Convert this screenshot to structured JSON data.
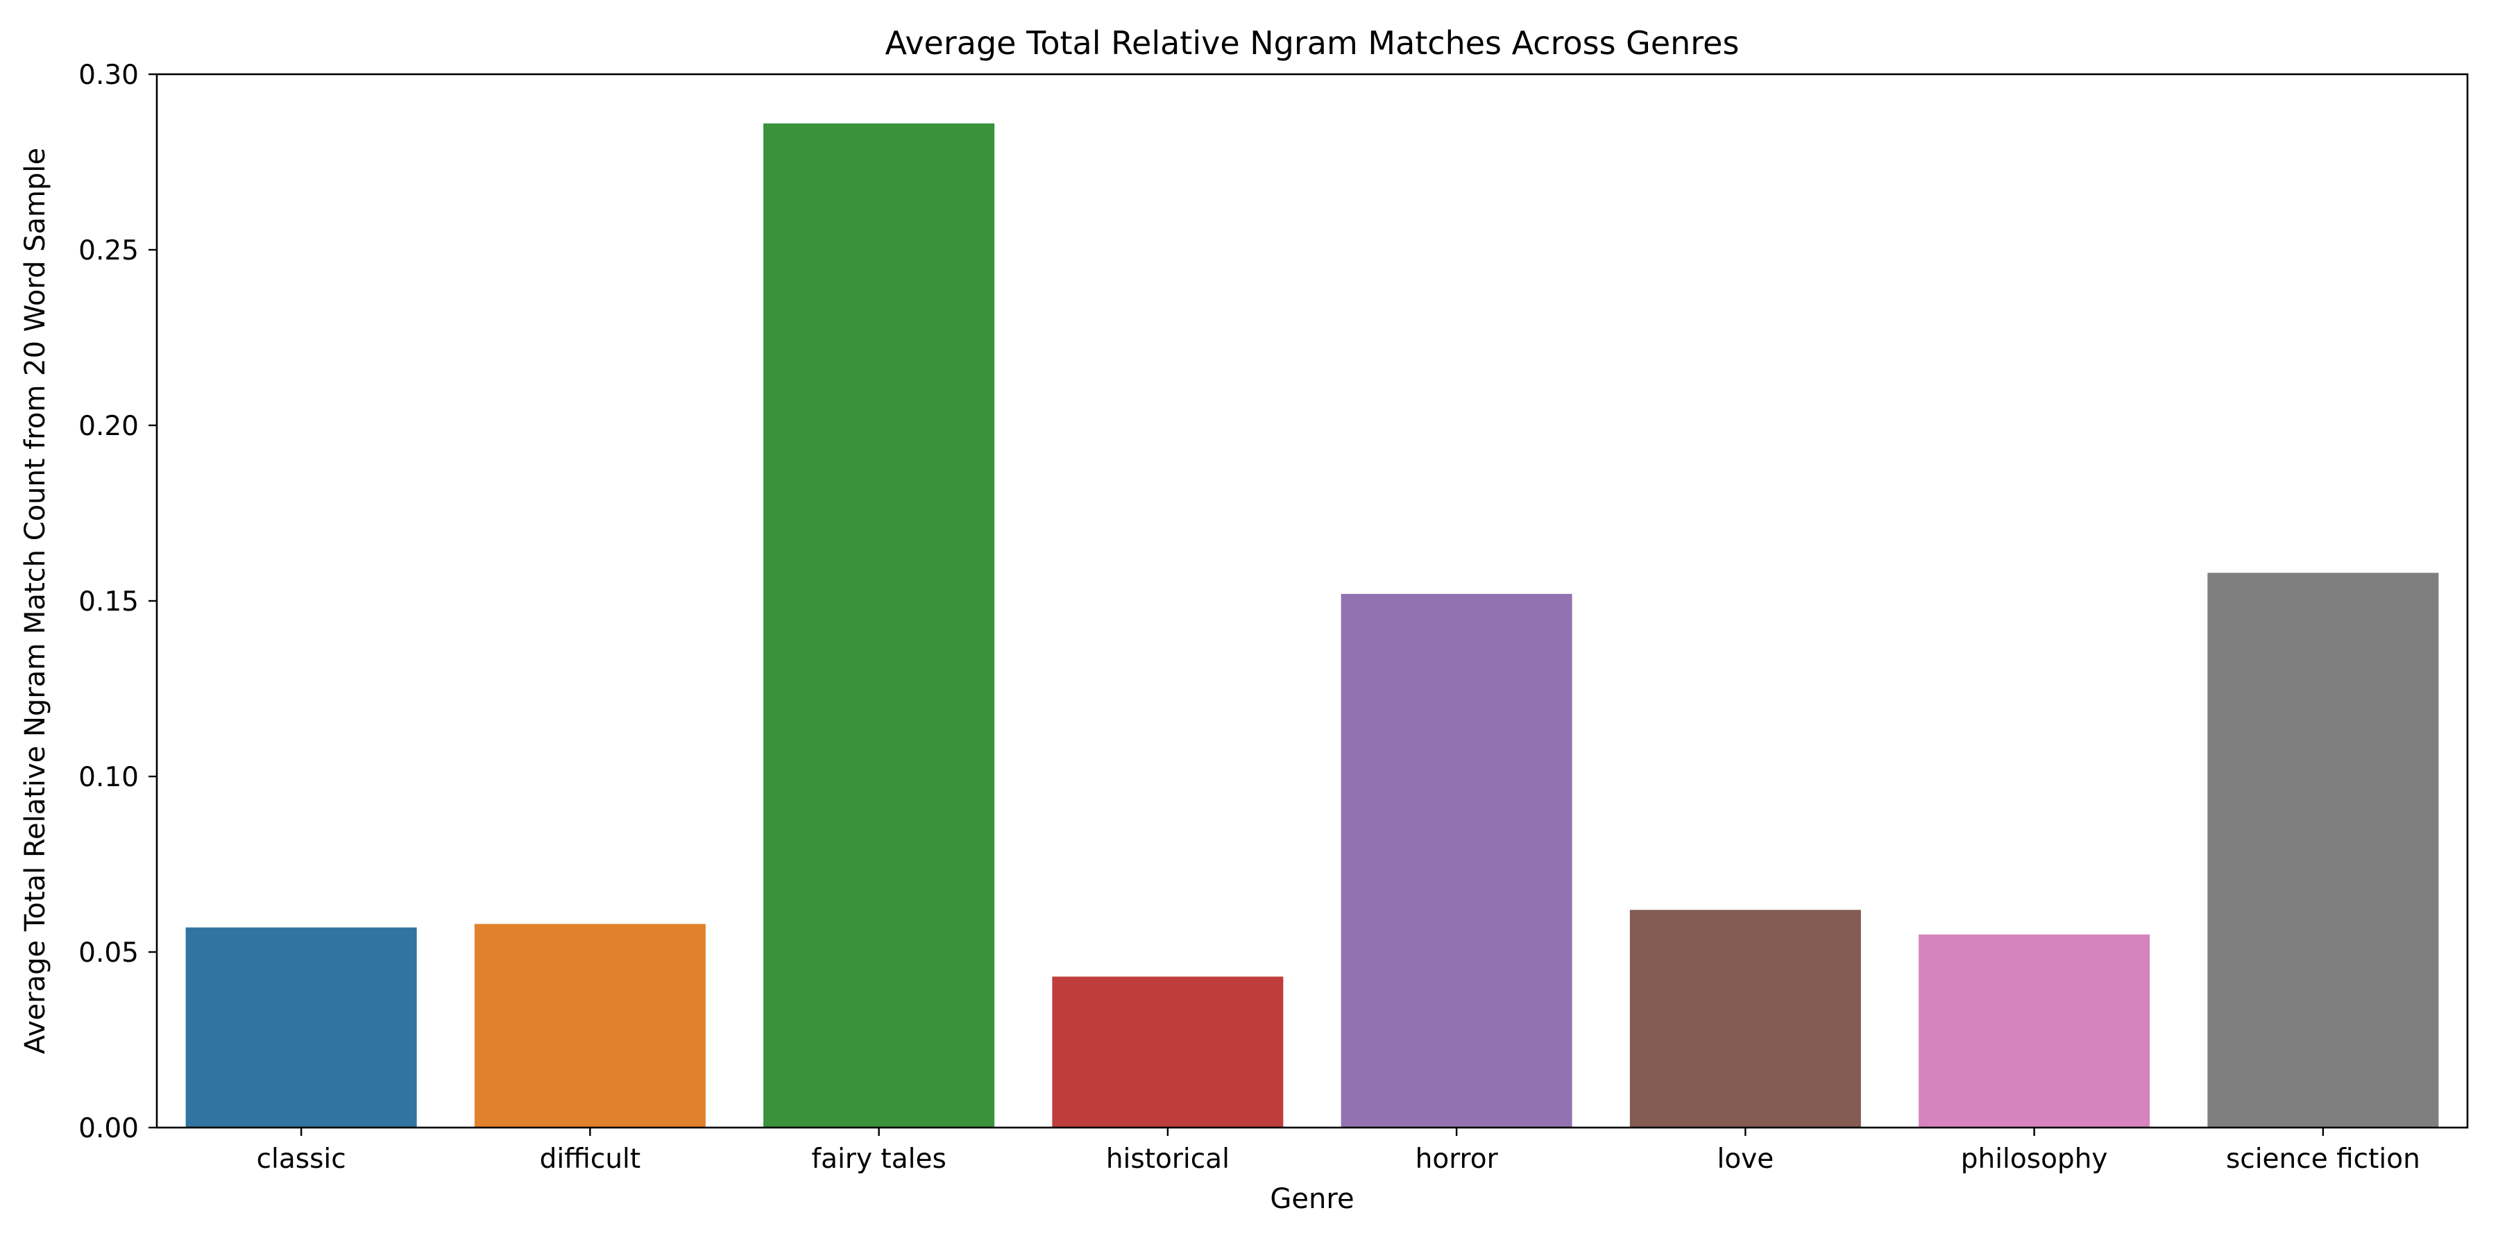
{
  "chart_data": {
    "type": "bar",
    "title": "Average Total Relative Ngram Matches Across Genres",
    "xlabel": "Genre",
    "ylabel": "Average Total Relative Ngram Match Count from 20 Word Sample",
    "categories": [
      "classic",
      "difficult",
      "fairy tales",
      "historical",
      "horror",
      "love",
      "philosophy",
      "science fiction"
    ],
    "values": [
      0.057,
      0.058,
      0.286,
      0.043,
      0.152,
      0.062,
      0.055,
      0.158
    ],
    "colors": [
      "#3274a1",
      "#e1812c",
      "#3a923a",
      "#c03d3e",
      "#9372b2",
      "#845b53",
      "#d684bd",
      "#7f7f7f"
    ],
    "ylim": [
      0,
      0.3
    ],
    "yticks": [
      "0.00",
      "0.05",
      "0.10",
      "0.15",
      "0.20",
      "0.25",
      "0.30"
    ],
    "grid": false,
    "legend": "none"
  }
}
